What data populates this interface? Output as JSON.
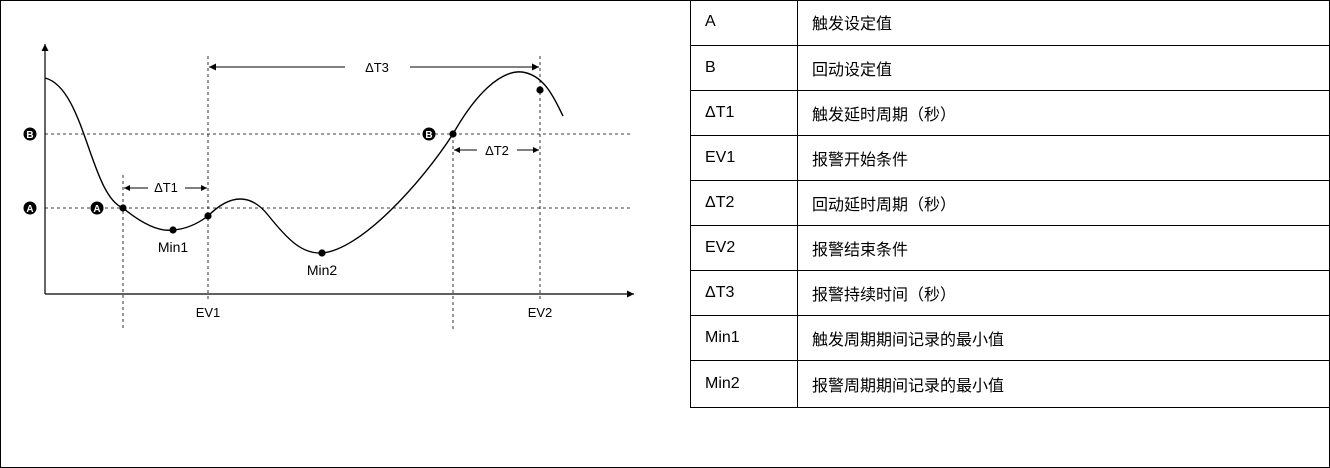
{
  "diagram": {
    "labels": {
      "dt1": "ΔT1",
      "dt2": "ΔT2",
      "dt3": "ΔT3",
      "ev1": "EV1",
      "ev2": "EV2",
      "min1": "Min1",
      "min2": "Min2",
      "marker_a": "A",
      "marker_b": "B"
    },
    "colors": {
      "line": "#000000",
      "marker_fill": "#000000",
      "marker_text": "#ffffff"
    }
  },
  "legend": {
    "rows": [
      {
        "symbol": "A",
        "description": "触发设定值"
      },
      {
        "symbol": "B",
        "description": "回动设定值"
      },
      {
        "symbol": "ΔT1",
        "description": "触发延时周期（秒）"
      },
      {
        "symbol": "EV1",
        "description": "报警开始条件"
      },
      {
        "symbol": "ΔT2",
        "description": "回动延时周期（秒）"
      },
      {
        "symbol": "EV2",
        "description": "报警结束条件"
      },
      {
        "symbol": "ΔT3",
        "description": "报警持续时间（秒）"
      },
      {
        "symbol": "Min1",
        "description": "触发周期期间记录的最小值"
      },
      {
        "symbol": "Min2",
        "description": "报警周期期间记录的最小值"
      }
    ]
  }
}
